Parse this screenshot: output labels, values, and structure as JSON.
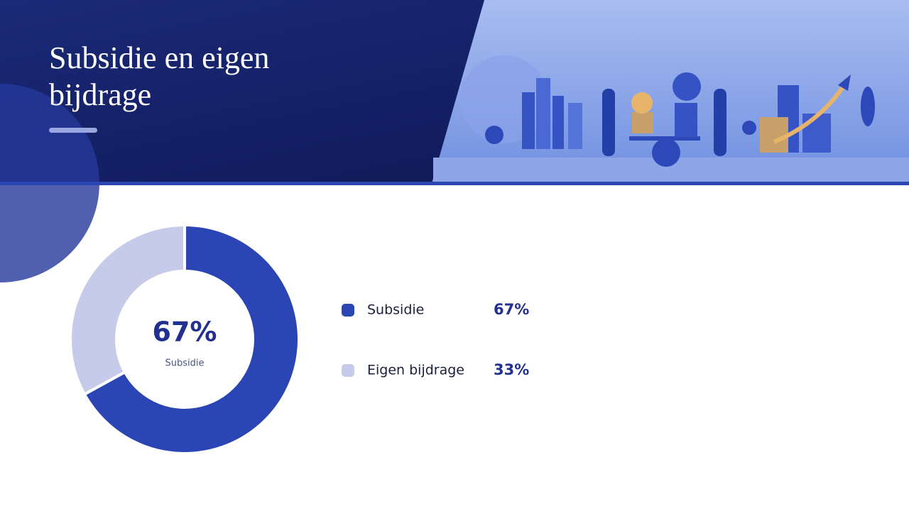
{
  "chart_data": {
    "type": "donut",
    "title": "Subsidie en eigen bijdrage",
    "categories": [
      "Subsidie",
      "Eigen bijdrage"
    ],
    "values": [
      67,
      33
    ],
    "value_labels": [
      "67%",
      "33%"
    ],
    "colors": [
      "#2b45b5",
      "#c5cbe8"
    ]
  }
}
